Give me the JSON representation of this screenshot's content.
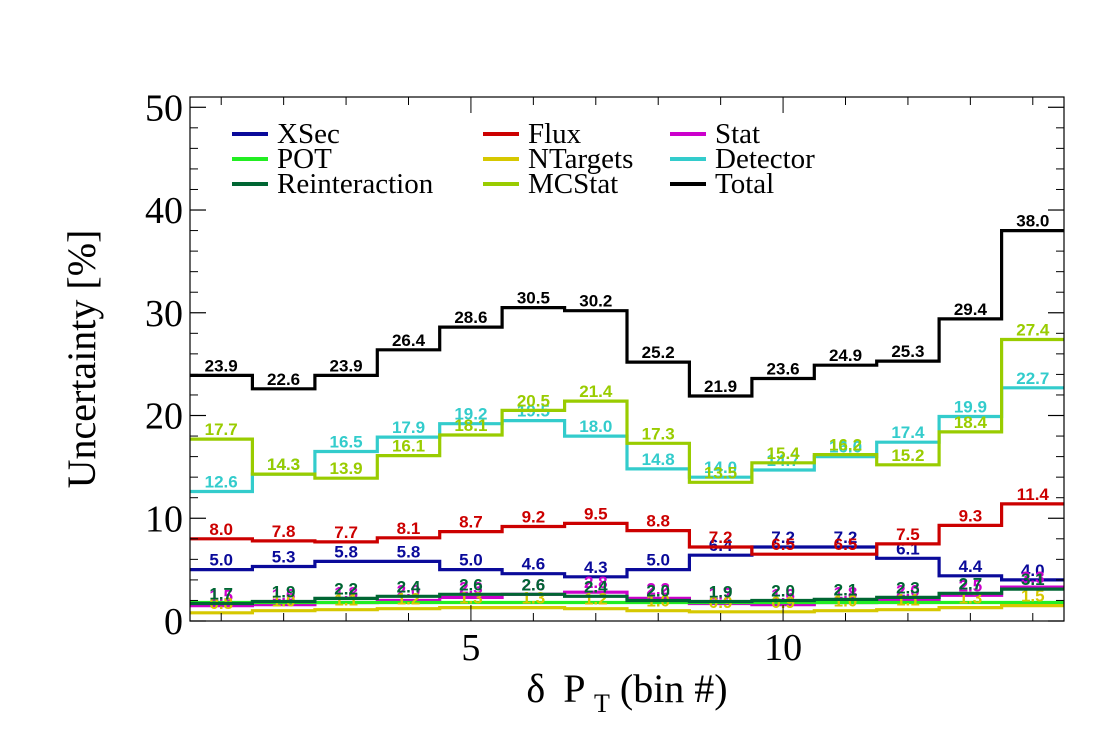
{
  "chart_data": {
    "type": "step",
    "title": "",
    "xlabel": {
      "delta": "δ",
      "main": "P",
      "sub": "T",
      "rest": " (bin #)"
    },
    "ylabel": "Uncertainty [%]",
    "xlim": [
      0.5,
      14.5
    ],
    "ylim": [
      0,
      51
    ],
    "xticks": [
      5,
      10
    ],
    "yticks": [
      0,
      10,
      20,
      30,
      40,
      50
    ],
    "grid": false,
    "legend_position": "top-left, three columns",
    "bins": [
      1,
      2,
      3,
      4,
      5,
      6,
      7,
      8,
      9,
      10,
      11,
      12,
      13,
      14
    ],
    "series": [
      {
        "name": "XSec",
        "color": "#0a0a9a",
        "values": [
          5.0,
          5.3,
          5.8,
          5.8,
          5.0,
          4.6,
          4.3,
          5.0,
          6.4,
          7.2,
          7.2,
          6.1,
          4.4,
          4.0
        ]
      },
      {
        "name": "Flux",
        "color": "#cc0000",
        "values": [
          8.0,
          7.8,
          7.7,
          8.1,
          8.7,
          9.2,
          9.5,
          8.8,
          7.2,
          6.5,
          6.5,
          7.5,
          9.3,
          11.4
        ]
      },
      {
        "name": "Stat",
        "color": "#cc00cc",
        "values": [
          1.5,
          1.6,
          1.8,
          2.0,
          2.3,
          2.6,
          2.8,
          2.2,
          1.7,
          1.6,
          1.8,
          2.0,
          2.5,
          3.3
        ]
      },
      {
        "name": "POT",
        "color": "#22ee22",
        "values": [
          1.8,
          1.8,
          1.8,
          1.8,
          1.8,
          1.8,
          1.8,
          1.8,
          1.8,
          1.8,
          1.8,
          1.8,
          1.8,
          1.8
        ]
      },
      {
        "name": "NTargets",
        "color": "#d6c800",
        "values": [
          0.8,
          1.0,
          1.1,
          1.2,
          1.3,
          1.3,
          1.2,
          1.0,
          0.9,
          0.9,
          1.0,
          1.1,
          1.3,
          1.5
        ]
      },
      {
        "name": "Detector",
        "color": "#33cccc",
        "values": [
          12.6,
          14.3,
          16.5,
          17.9,
          19.2,
          19.5,
          18.0,
          14.8,
          14.0,
          14.7,
          16.0,
          17.4,
          19.9,
          22.7
        ]
      },
      {
        "name": "Reinteraction",
        "color": "#006633",
        "values": [
          1.7,
          1.9,
          2.2,
          2.4,
          2.6,
          2.6,
          2.4,
          2.0,
          1.9,
          2.0,
          2.1,
          2.3,
          2.7,
          3.1
        ]
      },
      {
        "name": "MCStat",
        "color": "#99cc00",
        "values": [
          17.7,
          14.3,
          13.9,
          16.1,
          18.1,
          20.5,
          21.4,
          17.3,
          13.5,
          15.4,
          16.2,
          15.2,
          18.4,
          27.4
        ]
      },
      {
        "name": "Total",
        "color": "#000000",
        "values": [
          23.9,
          22.6,
          23.9,
          26.4,
          28.6,
          30.5,
          30.2,
          25.2,
          21.9,
          23.6,
          24.9,
          25.3,
          29.4,
          38.0
        ]
      }
    ]
  }
}
